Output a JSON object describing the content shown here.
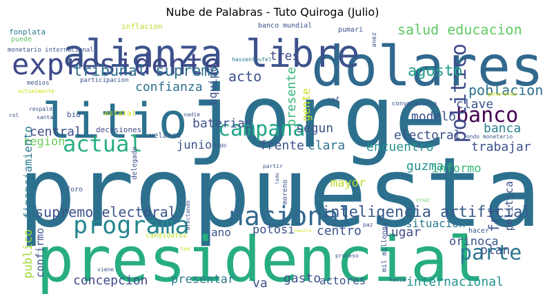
{
  "title": "Nube de Palabras - Tuto Quiroga (Julio)",
  "words": [
    {
      "text": "propuesta",
      "color": "#2d708e"
    },
    {
      "text": "jorge",
      "color": "#2d708e"
    },
    {
      "text": "presidencial",
      "color": "#27ad81"
    },
    {
      "text": "dolares",
      "color": "#31688e"
    },
    {
      "text": "alianza libre",
      "color": "#3b528b"
    },
    {
      "text": "litio",
      "color": "#2c728e"
    },
    {
      "text": "expresidente",
      "color": "#3e4989"
    },
    {
      "text": "nacional",
      "color": "#31688e"
    },
    {
      "text": "programa",
      "color": "#25858e"
    },
    {
      "text": "campana",
      "color": "#20a386"
    },
    {
      "text": "banco",
      "color": "#440154"
    },
    {
      "text": "politico",
      "color": "#3e4a89"
    },
    {
      "text": "actual",
      "color": "#29af7f"
    },
    {
      "text": "parte",
      "color": "#2a788e"
    },
    {
      "text": "inteligencia artificial",
      "color": "#38588c"
    },
    {
      "text": "tribunal supremo",
      "color": "#2d708e"
    },
    {
      "text": "salud educacion",
      "color": "#5ec962"
    },
    {
      "text": "supremo electoral",
      "color": "#3b528b"
    },
    {
      "text": "agosto",
      "color": "#1f9e89"
    },
    {
      "text": "poblacion",
      "color": "#2c728e"
    },
    {
      "text": "confianza",
      "color": "#2d708e"
    },
    {
      "text": "acto",
      "color": "#3b528b"
    },
    {
      "text": "tres",
      "color": "#3e4989"
    },
    {
      "text": "equipo",
      "color": "#3b528b"
    },
    {
      "text": "presente",
      "color": "#35b779"
    },
    {
      "text": "clave",
      "color": "#39568c"
    },
    {
      "text": "gente",
      "color": "#d0e11c"
    },
    {
      "text": "modelo",
      "color": "#3b528b"
    },
    {
      "text": "baterias",
      "color": "#3b528b"
    },
    {
      "text": "central",
      "color": "#3e4989"
    },
    {
      "text": "electoral",
      "color": "#3b528b"
    },
    {
      "text": "banca",
      "color": "#26828e"
    },
    {
      "text": "segun",
      "color": "#3b528b"
    },
    {
      "text": "region",
      "color": "#6ccd5a"
    },
    {
      "text": "frente",
      "color": "#3b528b"
    },
    {
      "text": "clara",
      "color": "#2c728e"
    },
    {
      "text": "encuentro",
      "color": "#21918c"
    },
    {
      "text": "trabajar",
      "color": "#3b528b"
    },
    {
      "text": "junio",
      "color": "#3b528b"
    },
    {
      "text": "financiamiento",
      "color": "#2a788e"
    },
    {
      "text": "guzman",
      "color": "#21918c"
    },
    {
      "text": "informo",
      "color": "#35b779"
    },
    {
      "text": "mayor",
      "color": "#b8de29"
    },
    {
      "text": "politica",
      "color": "#3b528b"
    },
    {
      "text": "fri",
      "color": "#3b528b"
    },
    {
      "text": "situacion",
      "color": "#2a788e"
    },
    {
      "text": "lugar",
      "color": "#3e4989"
    },
    {
      "text": "centro",
      "color": "#3b528b"
    },
    {
      "text": "potosi",
      "color": "#3b528b"
    },
    {
      "text": "ano",
      "color": "#3b528b"
    },
    {
      "text": "orinoca",
      "color": "#3b528b"
    },
    {
      "text": "plan",
      "color": "#3b528b"
    },
    {
      "text": "publico",
      "color": "#a0da39"
    },
    {
      "text": "confirmo",
      "color": "#3b528b"
    },
    {
      "text": "concepcion",
      "color": "#3e4989"
    },
    {
      "text": "presentar",
      "color": "#2a788e"
    },
    {
      "text": "va",
      "color": "#3b528b"
    },
    {
      "text": "gasto",
      "color": "#3b528b"
    },
    {
      "text": "actores",
      "color": "#3b528b"
    },
    {
      "text": "internacional",
      "color": "#21918c"
    },
    {
      "text": "decisiones",
      "color": "#3e4989"
    },
    {
      "text": "velasco",
      "color": "#3b528b"
    },
    {
      "text": "estatal",
      "color": "#d0e11c"
    },
    {
      "text": "bid",
      "color": "#3b528b"
    },
    {
      "text": "fonplata",
      "color": "#2a788e"
    },
    {
      "text": "inflacion",
      "color": "#b8de29"
    },
    {
      "text": "puede",
      "color": "#5ec962"
    },
    {
      "text": "monetario internacional",
      "color": "#3b528b"
    },
    {
      "text": "banco mundial",
      "color": "#3b528b"
    },
    {
      "text": "pumari",
      "color": "#3b528b"
    },
    {
      "text": "anez",
      "color": "#3b528b"
    },
    {
      "text": "hassenteufel",
      "color": "#2a788e"
    },
    {
      "text": "medios",
      "color": "#3b528b"
    },
    {
      "text": "actualmente",
      "color": "#d0e11c"
    },
    {
      "text": "participacion",
      "color": "#3b528b"
    },
    {
      "text": "respaldo",
      "color": "#3b528b"
    },
    {
      "text": "rol",
      "color": "#3b528b"
    },
    {
      "text": "santa",
      "color": "#3b528b"
    },
    {
      "text": "caf",
      "color": "#3b528b"
    },
    {
      "text": "nadie",
      "color": "#3b528b"
    },
    {
      "text": "sido",
      "color": "#3b528b"
    },
    {
      "text": "convocatoria",
      "color": "#3b528b"
    },
    {
      "text": "generales",
      "color": "#d0e11c"
    },
    {
      "text": "fondo monetario",
      "color": "#3b528b"
    },
    {
      "text": "delegado",
      "color": "#3b528b"
    },
    {
      "text": "foro",
      "color": "#3b528b"
    },
    {
      "text": "moreno",
      "color": "#3b528b"
    },
    {
      "text": "afectando",
      "color": "#3b528b"
    },
    {
      "text": "candidatos",
      "color": "#b8de29"
    },
    {
      "text": "cruz",
      "color": "#5ec962"
    },
    {
      "text": "partir",
      "color": "#3b528b"
    },
    {
      "text": "lado",
      "color": "#3b528b"
    },
    {
      "text": "mil millones",
      "color": "#3b528b"
    },
    {
      "text": "paz",
      "color": "#3b528b"
    },
    {
      "text": "hacer",
      "color": "#3b528b"
    },
    {
      "text": "proceso",
      "color": "#3b528b"
    },
    {
      "text": "viene",
      "color": "#3b528b"
    },
    {
      "text": "hacia",
      "color": "#3b528b"
    },
    {
      "text": "tse",
      "color": "#d0e11c"
    },
    {
      "text": "nuestra",
      "color": "#d0e11c"
    }
  ]
}
